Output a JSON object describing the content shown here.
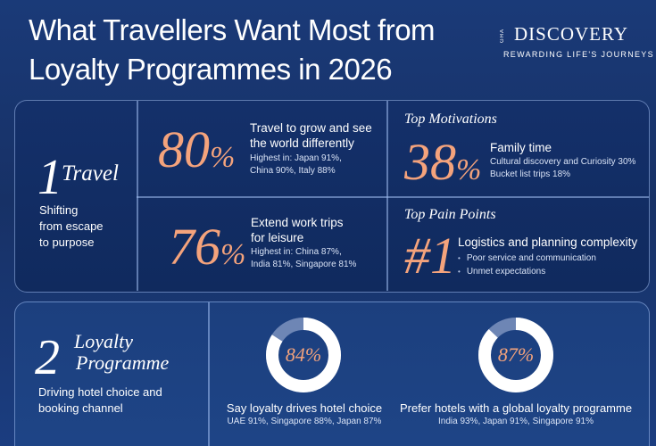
{
  "title": {
    "line1": "What Travellers Want Most from",
    "line2": "Loyalty Programmes in 2026"
  },
  "logo": {
    "mark": "GHA",
    "name": "DISCOVERY",
    "tagline": "REWARDING LIFE'S JOURNEYS"
  },
  "section1": {
    "number": "1",
    "name": "Travel",
    "description": [
      "Shifting",
      "from escape",
      "to purpose"
    ],
    "stat1": {
      "value": "80",
      "unit": "%",
      "headline": [
        "Travel to grow and see",
        "the world differently"
      ],
      "detail": [
        "Highest in: Japan 91%,",
        "China 90%, Italy 88%"
      ]
    },
    "stat2": {
      "value": "76",
      "unit": "%",
      "headline": [
        "Extend work trips",
        "for leisure"
      ],
      "detail": [
        "Highest in: China 87%,",
        "India 81%, Singapore 81%"
      ]
    },
    "motivations": {
      "label": "Top Motivations",
      "value": "38",
      "unit": "%",
      "headline": "Family time",
      "detail": [
        "Cultural discovery and Curiosity 30%",
        "Bucket list trips 18%"
      ]
    },
    "pain_points": {
      "label": "Top Pain Points",
      "value": "#1",
      "headline": "Logistics and planning complexity",
      "bullets": [
        "Poor service and communication",
        "Unmet expectations"
      ]
    }
  },
  "section2": {
    "number": "2",
    "name": [
      "Loyalty",
      "Programme"
    ],
    "description": [
      "Driving hotel choice and",
      "booking channel"
    ],
    "stat1": {
      "value": "84%",
      "fraction": 0.84,
      "headline": "Say loyalty drives hotel choice",
      "detail": "UAE 91%, Singapore 88%, Japan 87%"
    },
    "stat2": {
      "value": "87%",
      "fraction": 0.87,
      "headline": "Prefer hotels with a global loyalty programme",
      "detail": "India 93%, Japan 91%, Singapore 91%"
    }
  },
  "colors": {
    "accent": "#f4a37c",
    "background": "#173166",
    "donut_track": "#6e86b5",
    "donut_fill": "#ffffff"
  }
}
